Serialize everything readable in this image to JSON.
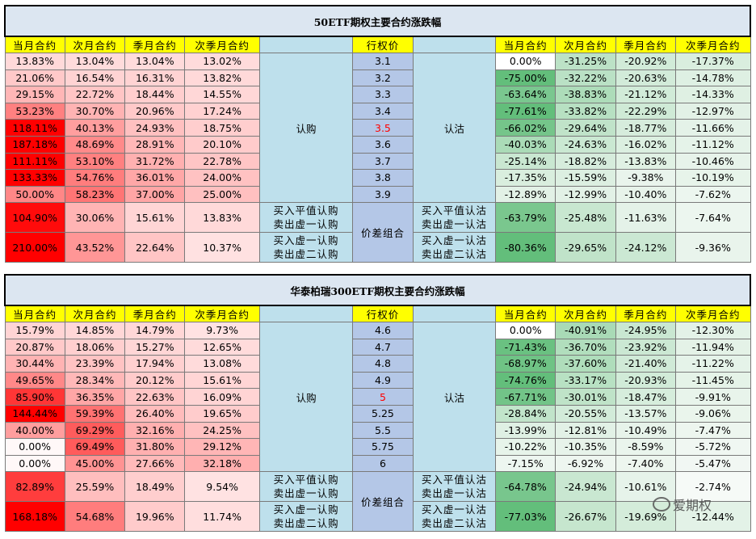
{
  "tables": [
    {
      "title": "50ETF期权主要合约涨跌幅",
      "headers": [
        "当月合约",
        "次月合约",
        "季月合约",
        "次季月合约",
        "",
        "行权价",
        "",
        "当月合约",
        "次月合约",
        "季月合约",
        "次季月合约"
      ],
      "call_label": "认购",
      "put_label": "认沽",
      "combo_label": "价差组合",
      "rows": [
        {
          "calls": [
            "13.83%",
            "13.04%",
            "13.04%",
            "13.02%"
          ],
          "strike": "3.1",
          "puts": [
            "0.00%",
            "-31.25%",
            "-20.92%",
            "-17.37%"
          ]
        },
        {
          "calls": [
            "21.06%",
            "16.54%",
            "16.31%",
            "13.82%"
          ],
          "strike": "3.2",
          "puts": [
            "-75.00%",
            "-32.22%",
            "-20.63%",
            "-14.78%"
          ]
        },
        {
          "calls": [
            "29.15%",
            "22.72%",
            "18.44%",
            "14.55%"
          ],
          "strike": "3.3",
          "puts": [
            "-63.64%",
            "-38.83%",
            "-21.12%",
            "-14.33%"
          ]
        },
        {
          "calls": [
            "53.23%",
            "30.70%",
            "20.96%",
            "17.24%"
          ],
          "strike": "3.4",
          "puts": [
            "-77.61%",
            "-33.82%",
            "-22.29%",
            "-12.97%"
          ]
        },
        {
          "calls": [
            "118.11%",
            "40.13%",
            "24.93%",
            "18.75%"
          ],
          "strike": "3.5",
          "atm": true,
          "puts": [
            "-66.02%",
            "-29.64%",
            "-18.77%",
            "-11.66%"
          ]
        },
        {
          "calls": [
            "187.18%",
            "48.69%",
            "28.91%",
            "20.10%"
          ],
          "strike": "3.6",
          "puts": [
            "-40.03%",
            "-24.63%",
            "-16.02%",
            "-11.12%"
          ]
        },
        {
          "calls": [
            "111.11%",
            "53.10%",
            "31.72%",
            "22.78%"
          ],
          "strike": "3.7",
          "puts": [
            "-25.14%",
            "-18.82%",
            "-13.83%",
            "-10.46%"
          ]
        },
        {
          "calls": [
            "133.33%",
            "54.76%",
            "36.01%",
            "24.00%"
          ],
          "strike": "3.8",
          "puts": [
            "-17.35%",
            "-15.59%",
            "-9.38%",
            "-10.19%"
          ]
        },
        {
          "calls": [
            "50.00%",
            "58.23%",
            "37.00%",
            "25.00%"
          ],
          "strike": "3.9",
          "puts": [
            "-12.89%",
            "-12.99%",
            "-10.40%",
            "-7.62%"
          ]
        }
      ],
      "combos": [
        {
          "calls": [
            "104.90%",
            "30.06%",
            "15.61%",
            "13.83%"
          ],
          "left": [
            "买入平值认购",
            "卖出虚一认购"
          ],
          "right": [
            "买入平值认沽",
            "卖出虚一认沽"
          ],
          "puts": [
            "-63.79%",
            "-25.48%",
            "-11.63%",
            "-7.64%"
          ]
        },
        {
          "calls": [
            "210.00%",
            "43.52%",
            "22.64%",
            "10.37%"
          ],
          "left": [
            "买入虚一认购",
            "卖出虚二认购"
          ],
          "right": [
            "买入虚一认沽",
            "卖出虚二认沽"
          ],
          "puts": [
            "-80.36%",
            "-29.65%",
            "-24.12%",
            "-9.36%"
          ]
        }
      ]
    },
    {
      "title": "华泰柏瑞300ETF期权主要合约涨跌幅",
      "headers": [
        "当月合约",
        "次月合约",
        "季月合约",
        "次季月合约",
        "",
        "行权价",
        "",
        "当月合约",
        "次月合约",
        "季月合约",
        "次季月合约"
      ],
      "call_label": "认购",
      "put_label": "认沽",
      "combo_label": "价差组合",
      "rows": [
        {
          "calls": [
            "15.79%",
            "14.85%",
            "14.79%",
            "9.73%"
          ],
          "strike": "4.6",
          "puts": [
            "0.00%",
            "-40.91%",
            "-24.95%",
            "-12.30%"
          ]
        },
        {
          "calls": [
            "20.87%",
            "18.06%",
            "15.27%",
            "12.65%"
          ],
          "strike": "4.7",
          "puts": [
            "-71.43%",
            "-36.70%",
            "-23.92%",
            "-11.94%"
          ]
        },
        {
          "calls": [
            "30.44%",
            "23.39%",
            "17.94%",
            "13.08%"
          ],
          "strike": "4.8",
          "puts": [
            "-68.97%",
            "-37.60%",
            "-21.40%",
            "-11.22%"
          ]
        },
        {
          "calls": [
            "49.65%",
            "28.34%",
            "20.12%",
            "15.61%"
          ],
          "strike": "4.9",
          "puts": [
            "-74.76%",
            "-33.17%",
            "-20.93%",
            "-11.45%"
          ]
        },
        {
          "calls": [
            "85.90%",
            "36.35%",
            "22.63%",
            "16.09%"
          ],
          "strike": "5",
          "atm": true,
          "puts": [
            "-67.71%",
            "-30.01%",
            "-18.47%",
            "-9.91%"
          ]
        },
        {
          "calls": [
            "144.44%",
            "59.39%",
            "26.40%",
            "19.65%"
          ],
          "strike": "5.25",
          "puts": [
            "-28.84%",
            "-20.55%",
            "-13.57%",
            "-9.06%"
          ]
        },
        {
          "calls": [
            "40.00%",
            "69.29%",
            "32.16%",
            "24.25%"
          ],
          "strike": "5.5",
          "puts": [
            "-13.99%",
            "-12.81%",
            "-10.49%",
            "-7.47%"
          ]
        },
        {
          "calls": [
            "0.00%",
            "69.49%",
            "31.80%",
            "29.12%"
          ],
          "strike": "5.75",
          "puts": [
            "-10.22%",
            "-10.35%",
            "-8.59%",
            "-5.72%"
          ]
        },
        {
          "calls": [
            "0.00%",
            "45.00%",
            "27.66%",
            "32.18%"
          ],
          "strike": "6",
          "puts": [
            "-7.15%",
            "-6.92%",
            "-7.40%",
            "-5.47%"
          ]
        }
      ],
      "combos": [
        {
          "calls": [
            "82.89%",
            "25.59%",
            "18.49%",
            "9.54%"
          ],
          "left": [
            "买入平值认购",
            "卖出虚一认购"
          ],
          "right": [
            "买入平值认沽",
            "卖出虚一认沽"
          ],
          "puts": [
            "-64.78%",
            "-24.94%",
            "-10.61%",
            "-2.74%"
          ]
        },
        {
          "calls": [
            "168.18%",
            "54.68%",
            "19.96%",
            "11.74%"
          ],
          "left": [
            "买入虚一认购",
            "卖出虚二认购"
          ],
          "right": [
            "买入虚一认沽",
            "卖出虚二认沽"
          ],
          "puts": [
            "-77.03%",
            "-26.67%",
            "-19.69%",
            "-12.44%"
          ]
        }
      ]
    }
  ],
  "watermark": "爱期权",
  "colors": {
    "title_bg": "#dce6f1",
    "header_bg": "#ffff00",
    "side_label_bg": "#bee0ec",
    "strike_bg": "#b4c7e7",
    "atm_strike_text": "#ff0000",
    "gain_max": "#ff0000",
    "loss_max": "#63be7b"
  }
}
